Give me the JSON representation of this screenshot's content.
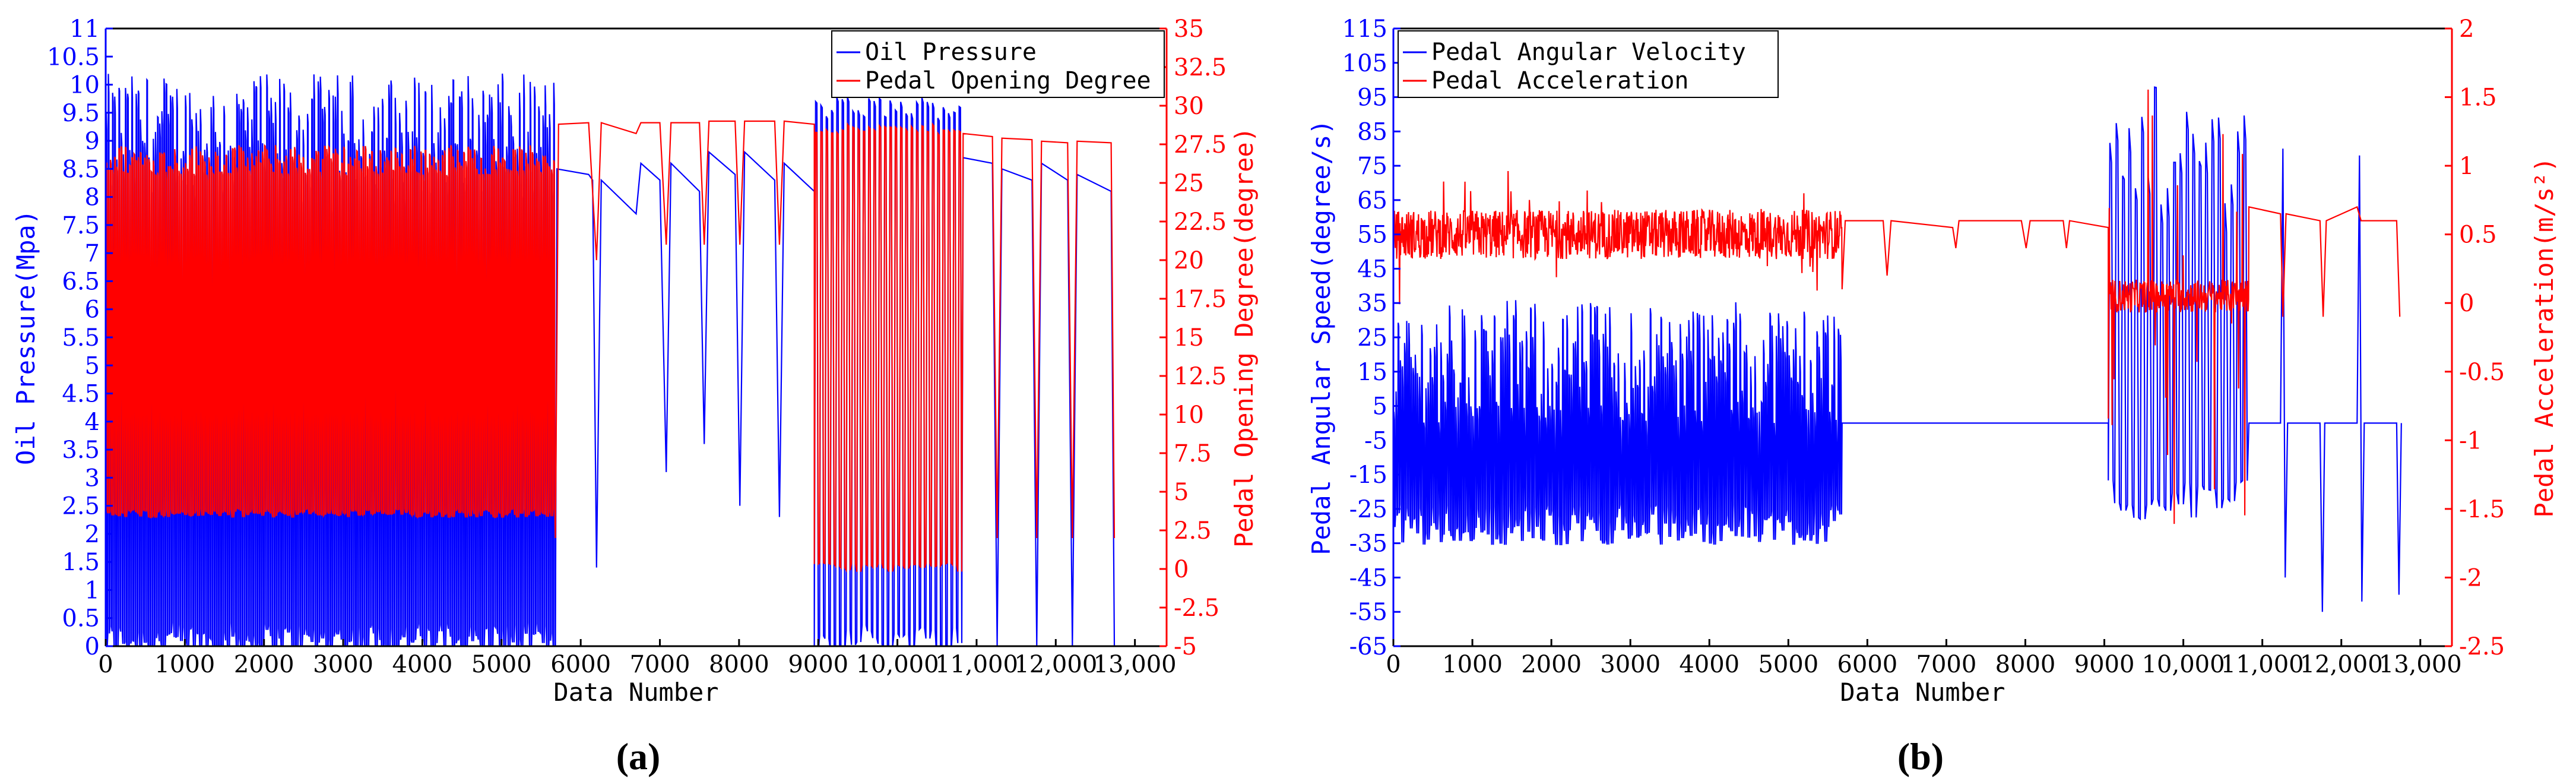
{
  "chart_data": [
    {
      "type": "line",
      "panel_label": "(a)",
      "xlabel": "Data Number",
      "ylabel_left": "Oil Pressure(Mpa)",
      "ylabel_right": "Pedal Opening Degree(degree)",
      "xlim": [
        0,
        13400
      ],
      "ylim_left": [
        0,
        11
      ],
      "ylim_right": [
        -5,
        35
      ],
      "xticks": [
        0,
        1000,
        2000,
        3000,
        4000,
        5000,
        6000,
        7000,
        8000,
        9000,
        10000,
        11000,
        12000,
        13000
      ],
      "xtick_labels": [
        "0",
        "1000",
        "2000",
        "3000",
        "4000",
        "5000",
        "6000",
        "7000",
        "8000",
        "9000",
        "10,000",
        "11,000",
        "12,000",
        "13,000"
      ],
      "yticks_left": [
        0,
        0.5,
        1,
        1.5,
        2,
        2.5,
        3,
        3.5,
        4,
        4.5,
        5,
        5.5,
        6,
        6.5,
        7,
        7.5,
        8,
        8.5,
        9,
        9.5,
        10,
        10.5,
        11
      ],
      "yticks_right": [
        -5,
        -2.5,
        0,
        2.5,
        5,
        7.5,
        10,
        12.5,
        15,
        17.5,
        20,
        22.5,
        25,
        27.5,
        30,
        32.5,
        35
      ],
      "legend_position": "top-right",
      "series": [
        {
          "name": "Oil Pressure",
          "axis": "left",
          "color": "#0000ff",
          "segments": [
            {
              "kind": "oscillating",
              "x0": 0,
              "x1": 5680,
              "low": 0.0,
              "high": 9.2,
              "high_var": 1.0,
              "cycles": 210
            },
            {
              "kind": "step_plateaus",
              "x0": 5680,
              "x1": 8950,
              "points": [
                [
                  5680,
                  0.0
                ],
                [
                  5700,
                  8.5
                ],
                [
                  6100,
                  8.4
                ],
                [
                  6150,
                  8.3
                ],
                [
                  6200,
                  1.4
                ],
                [
                  6260,
                  8.3
                ],
                [
                  6700,
                  7.7
                ],
                [
                  6760,
                  8.6
                ],
                [
                  7000,
                  8.3
                ],
                [
                  7080,
                  3.1
                ],
                [
                  7140,
                  8.6
                ],
                [
                  7500,
                  8.1
                ],
                [
                  7560,
                  3.6
                ],
                [
                  7620,
                  8.8
                ],
                [
                  7950,
                  8.4
                ],
                [
                  8010,
                  2.5
                ],
                [
                  8070,
                  8.8
                ],
                [
                  8450,
                  8.3
                ],
                [
                  8510,
                  2.3
                ],
                [
                  8570,
                  8.6
                ],
                [
                  8950,
                  8.1
                ]
              ]
            },
            {
              "kind": "oscillating",
              "x0": 8950,
              "x1": 10830,
              "low": 0.0,
              "high": 9.6,
              "high_var": 0.2,
              "cycles": 28
            },
            {
              "kind": "step_plateaus",
              "x0": 10830,
              "x1": 12700,
              "points": [
                [
                  10830,
                  8.7
                ],
                [
                  11200,
                  8.6
                ],
                [
                  11260,
                  0.0
                ],
                [
                  11320,
                  8.5
                ],
                [
                  11700,
                  8.3
                ],
                [
                  11760,
                  0.0
                ],
                [
                  11820,
                  8.6
                ],
                [
                  12150,
                  8.3
                ],
                [
                  12210,
                  0.0
                ],
                [
                  12270,
                  8.4
                ],
                [
                  12700,
                  8.1
                ],
                [
                  12740,
                  0.0
                ]
              ]
            }
          ]
        },
        {
          "name": "Pedal Opening Degree",
          "axis": "right",
          "color": "#ff0000",
          "segments": [
            {
              "kind": "oscillating",
              "x0": 0,
              "x1": 5680,
              "low": 3.5,
              "high": 26.5,
              "high_var": 1.0,
              "cycles": 210
            },
            {
              "kind": "step_plateaus",
              "x0": 5680,
              "x1": 8950,
              "points": [
                [
                  5680,
                  2.0
                ],
                [
                  5720,
                  28.8
                ],
                [
                  6100,
                  28.9
                ],
                [
                  6200,
                  20.0
                ],
                [
                  6260,
                  28.9
                ],
                [
                  6700,
                  28.2
                ],
                [
                  6760,
                  28.9
                ],
                [
                  7000,
                  28.9
                ],
                [
                  7080,
                  21.0
                ],
                [
                  7140,
                  28.9
                ],
                [
                  7500,
                  28.9
                ],
                [
                  7560,
                  21.0
                ],
                [
                  7620,
                  29.0
                ],
                [
                  7950,
                  29.0
                ],
                [
                  8010,
                  21.0
                ],
                [
                  8070,
                  29.0
                ],
                [
                  8450,
                  29.0
                ],
                [
                  8510,
                  21.0
                ],
                [
                  8570,
                  29.0
                ],
                [
                  8950,
                  28.8
                ]
              ]
            },
            {
              "kind": "oscillating",
              "x0": 8950,
              "x1": 10830,
              "low": 0.0,
              "high": 28.5,
              "high_var": 0.3,
              "cycles": 28
            },
            {
              "kind": "step_plateaus",
              "x0": 10830,
              "x1": 12700,
              "points": [
                [
                  10830,
                  28.2
                ],
                [
                  11200,
                  28.0
                ],
                [
                  11260,
                  2.0
                ],
                [
                  11320,
                  27.9
                ],
                [
                  11700,
                  27.8
                ],
                [
                  11760,
                  2.0
                ],
                [
                  11820,
                  27.7
                ],
                [
                  12150,
                  27.6
                ],
                [
                  12210,
                  2.0
                ],
                [
                  12270,
                  27.7
                ],
                [
                  12700,
                  27.6
                ],
                [
                  12740,
                  2.0
                ]
              ]
            }
          ]
        }
      ]
    },
    {
      "type": "line",
      "panel_label": "(b)",
      "xlabel": "Data Number",
      "ylabel_left": "Pedal Angular Speed(degree/s)",
      "ylabel_right": "Pedal Acceleration(m/s²)",
      "xlim": [
        0,
        13400
      ],
      "ylim_left": [
        -65,
        115
      ],
      "ylim_right": [
        -2.5,
        2
      ],
      "xticks": [
        0,
        1000,
        2000,
        3000,
        4000,
        5000,
        6000,
        7000,
        8000,
        9000,
        10000,
        11000,
        12000,
        13000
      ],
      "xtick_labels": [
        "0",
        "1000",
        "2000",
        "3000",
        "4000",
        "5000",
        "6000",
        "7000",
        "8000",
        "9000",
        "10,000",
        "11,000",
        "12,000",
        "13,000"
      ],
      "yticks_left": [
        -65,
        -55,
        -45,
        -35,
        -25,
        -15,
        -5,
        5,
        15,
        25,
        35,
        45,
        55,
        65,
        75,
        85,
        95,
        105,
        115
      ],
      "yticks_right": [
        -2.5,
        -2,
        -1.5,
        -1,
        -0.5,
        0,
        0.5,
        1,
        1.5,
        2
      ],
      "legend_position": "top-left",
      "series": [
        {
          "name": "Pedal Angular Velocity",
          "axis": "left",
          "color": "#0000ff",
          "segments": [
            {
              "kind": "oscillating",
              "x0": 0,
              "x1": 5680,
              "low": -32,
              "high": 18,
              "high_var": 18,
              "cycles": 210
            },
            {
              "kind": "step_plateaus",
              "x0": 5680,
              "x1": 9050,
              "points": [
                [
                  5680,
                  0
                ],
                [
                  9050,
                  0
                ]
              ]
            },
            {
              "kind": "oscillating",
              "x0": 9050,
              "x1": 10830,
              "low": -25,
              "high": 80,
              "high_var": 18,
              "cycles": 22
            },
            {
              "kind": "step_plateaus",
              "x0": 10830,
              "x1": 12750,
              "points": [
                [
                  10830,
                  0
                ],
                [
                  11230,
                  0
                ],
                [
                  11260,
                  80
                ],
                [
                  11290,
                  -45
                ],
                [
                  11320,
                  0
                ],
                [
                  11730,
                  0
                ],
                [
                  11760,
                  -55
                ],
                [
                  11790,
                  0
                ],
                [
                  12200,
                  0
                ],
                [
                  12230,
                  78
                ],
                [
                  12260,
                  -52
                ],
                [
                  12290,
                  0
                ],
                [
                  12700,
                  0
                ],
                [
                  12730,
                  -50
                ],
                [
                  12760,
                  0
                ]
              ]
            }
          ]
        },
        {
          "name": "Pedal Acceleration",
          "axis": "right",
          "color": "#ff0000",
          "segments": [
            {
              "kind": "noisy",
              "x0": 0,
              "x1": 5680,
              "center": 0.5,
              "amp": 0.18,
              "spike": 0.45
            },
            {
              "kind": "step_plateaus",
              "x0": 5680,
              "x1": 9050,
              "points": [
                [
                  5680,
                  0.1
                ],
                [
                  5720,
                  0.6
                ],
                [
                  6200,
                  0.6
                ],
                [
                  6250,
                  0.2
                ],
                [
                  6300,
                  0.6
                ],
                [
                  7080,
                  0.55
                ],
                [
                  7120,
                  0.4
                ],
                [
                  7160,
                  0.6
                ],
                [
                  7950,
                  0.6
                ],
                [
                  8010,
                  0.4
                ],
                [
                  8060,
                  0.6
                ],
                [
                  8480,
                  0.6
                ],
                [
                  8520,
                  0.4
                ],
                [
                  8560,
                  0.6
                ],
                [
                  9050,
                  0.55
                ]
              ]
            },
            {
              "kind": "noisy",
              "x0": 9050,
              "x1": 10830,
              "center": 0.05,
              "amp": 0.12,
              "spike": 1.6
            },
            {
              "kind": "step_plateaus",
              "x0": 10830,
              "x1": 12750,
              "points": [
                [
                  10830,
                  0.7
                ],
                [
                  11230,
                  0.65
                ],
                [
                  11260,
                  -0.1
                ],
                [
                  11300,
                  0.65
                ],
                [
                  11730,
                  0.6
                ],
                [
                  11770,
                  -0.1
                ],
                [
                  11810,
                  0.6
                ],
                [
                  12200,
                  0.7
                ],
                [
                  12250,
                  0.6
                ],
                [
                  12700,
                  0.6
                ],
                [
                  12740,
                  -0.1
                ]
              ]
            }
          ]
        }
      ]
    }
  ]
}
